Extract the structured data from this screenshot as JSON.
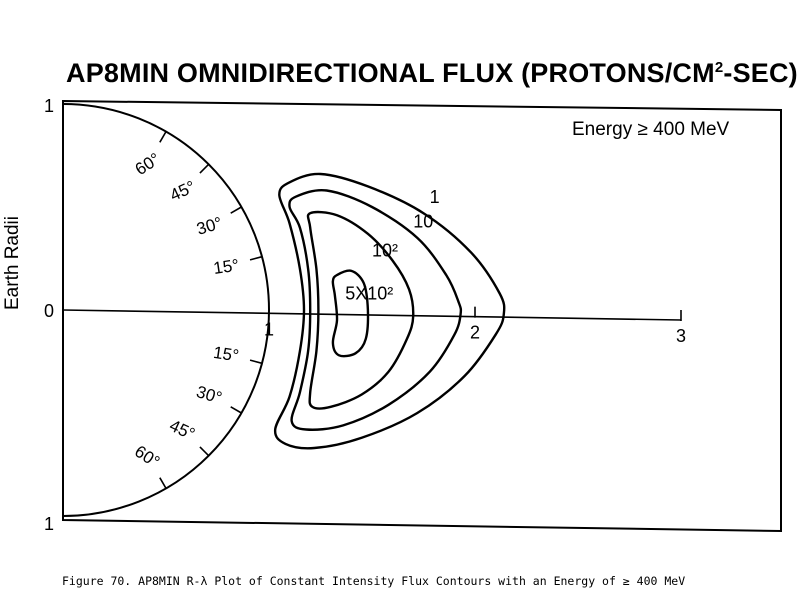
{
  "title_main": "AP8MIN OMNIDIRECTIONAL FLUX (PROTONS/CM",
  "title_sup": "2",
  "title_end": "-SEC)",
  "energy_label": "Energy ≥ 400 MeV",
  "ylabel": "Earth Radii",
  "caption": "Figure 70.  AP8MIN R-λ Plot of Constant Intensity Flux Contours with an Energy of ≥ 400 MeV",
  "chart_data": {
    "type": "line",
    "title": "AP8MIN OMNIDIRECTIONAL FLUX (PROTONS/CM2-SEC)",
    "ylabel": "Earth Radii",
    "xlim": [
      0,
      3
    ],
    "ylim": [
      -1,
      1
    ],
    "x_ticks": [
      {
        "value": 1,
        "label": "1"
      },
      {
        "value": 2,
        "label": "2"
      },
      {
        "value": 3,
        "label": "3"
      }
    ],
    "y_ticks": [
      {
        "value": 1,
        "label": "1"
      },
      {
        "value": 0,
        "label": "0"
      },
      {
        "value": -1,
        "label": "1"
      }
    ],
    "latitude_ticks": [
      {
        "deg": 60,
        "label": "60°"
      },
      {
        "deg": 45,
        "label": "45°"
      },
      {
        "deg": 30,
        "label": "30°"
      },
      {
        "deg": 15,
        "label": "15°"
      },
      {
        "deg": -15,
        "label": "15°"
      },
      {
        "deg": -30,
        "label": "30°"
      },
      {
        "deg": -45,
        "label": "45°"
      },
      {
        "deg": -60,
        "label": "60°"
      }
    ],
    "contours": [
      {
        "label": "1",
        "label_at": [
          1.78,
          0.52
        ],
        "points": [
          [
            1.1,
            0.62
          ],
          [
            1.25,
            0.66
          ],
          [
            1.48,
            0.6
          ],
          [
            1.75,
            0.47
          ],
          [
            1.98,
            0.28
          ],
          [
            2.12,
            0.08
          ],
          [
            2.14,
            -0.02
          ],
          [
            2.1,
            -0.12
          ],
          [
            1.95,
            -0.32
          ],
          [
            1.72,
            -0.5
          ],
          [
            1.45,
            -0.62
          ],
          [
            1.22,
            -0.67
          ],
          [
            1.08,
            -0.65
          ],
          [
            1.03,
            -0.58
          ],
          [
            1.1,
            -0.42
          ],
          [
            1.15,
            -0.2
          ],
          [
            1.17,
            0
          ],
          [
            1.15,
            0.2
          ],
          [
            1.1,
            0.42
          ],
          [
            1.05,
            0.56
          ]
        ]
      },
      {
        "label": "10",
        "label_at": [
          1.7,
          0.4
        ],
        "points": [
          [
            1.13,
            0.55
          ],
          [
            1.28,
            0.58
          ],
          [
            1.5,
            0.5
          ],
          [
            1.72,
            0.35
          ],
          [
            1.86,
            0.17
          ],
          [
            1.92,
            0.04
          ],
          [
            1.93,
            -0.02
          ],
          [
            1.9,
            -0.12
          ],
          [
            1.78,
            -0.3
          ],
          [
            1.58,
            -0.46
          ],
          [
            1.36,
            -0.56
          ],
          [
            1.18,
            -0.58
          ],
          [
            1.11,
            -0.54
          ],
          [
            1.15,
            -0.4
          ],
          [
            1.19,
            -0.2
          ],
          [
            1.2,
            0
          ],
          [
            1.19,
            0.2
          ],
          [
            1.15,
            0.4
          ],
          [
            1.1,
            0.5
          ]
        ]
      },
      {
        "label": "10²",
        "label_at": [
          1.5,
          0.26
        ],
        "points": [
          [
            1.2,
            0.47
          ],
          [
            1.33,
            0.46
          ],
          [
            1.48,
            0.37
          ],
          [
            1.6,
            0.24
          ],
          [
            1.68,
            0.1
          ],
          [
            1.7,
            -0.03
          ],
          [
            1.67,
            -0.14
          ],
          [
            1.58,
            -0.3
          ],
          [
            1.45,
            -0.41
          ],
          [
            1.3,
            -0.47
          ],
          [
            1.21,
            -0.47
          ],
          [
            1.2,
            -0.4
          ],
          [
            1.23,
            -0.2
          ],
          [
            1.24,
            0
          ],
          [
            1.23,
            0.2
          ],
          [
            1.2,
            0.4
          ]
        ]
      },
      {
        "label": "5X10²",
        "label_at": [
          1.37,
          0.05
        ],
        "points": [
          [
            1.33,
            0.17
          ],
          [
            1.4,
            0.19
          ],
          [
            1.46,
            0.13
          ],
          [
            1.48,
            0.0
          ],
          [
            1.47,
            -0.14
          ],
          [
            1.42,
            -0.21
          ],
          [
            1.34,
            -0.22
          ],
          [
            1.31,
            -0.16
          ],
          [
            1.33,
            -0.05
          ],
          [
            1.32,
            0.07
          ],
          [
            1.31,
            0.14
          ]
        ]
      }
    ]
  }
}
